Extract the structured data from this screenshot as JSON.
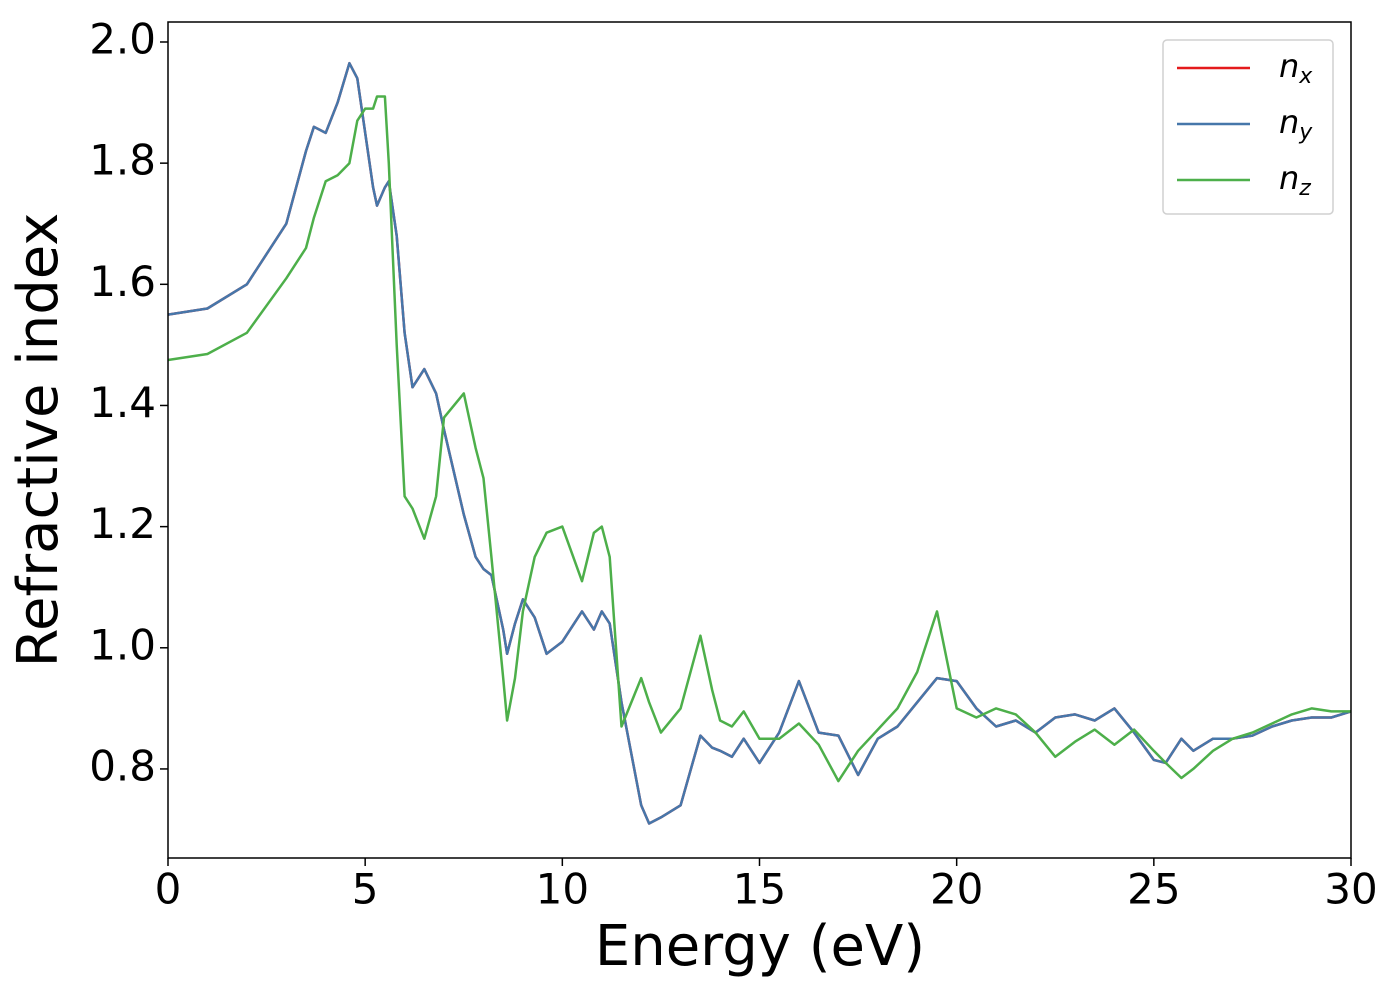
{
  "chart_data": {
    "type": "line",
    "xlabel": "Energy (eV)",
    "ylabel": "Refractive index",
    "x": [
      0,
      1,
      2,
      3,
      3.5,
      3.7,
      4,
      4.3,
      4.6,
      4.8,
      5,
      5.2,
      5.3,
      5.5,
      5.6,
      5.8,
      6,
      6.2,
      6.5,
      6.8,
      7,
      7.5,
      7.8,
      8,
      8.2,
      8.5,
      8.6,
      8.8,
      9,
      9.3,
      9.6,
      10,
      10.5,
      10.8,
      11,
      11.2,
      11.5,
      12,
      12.2,
      12.5,
      13,
      13.5,
      13.8,
      14,
      14.3,
      14.6,
      15,
      15.5,
      16,
      16.5,
      17,
      17.5,
      18,
      18.5,
      19,
      19.5,
      20,
      20.5,
      21,
      21.5,
      22,
      22.5,
      23,
      23.5,
      24,
      24.5,
      25,
      25.3,
      25.7,
      26,
      26.5,
      27,
      27.5,
      28,
      28.5,
      29,
      29.5,
      30
    ],
    "series": [
      {
        "name": "nx",
        "color": "#e41a1c",
        "values": [
          1.55,
          1.56,
          1.6,
          1.7,
          1.82,
          1.86,
          1.85,
          1.9,
          1.965,
          1.94,
          1.85,
          1.76,
          1.73,
          1.76,
          1.77,
          1.68,
          1.52,
          1.43,
          1.46,
          1.42,
          1.36,
          1.22,
          1.15,
          1.13,
          1.12,
          1.03,
          0.99,
          1.04,
          1.08,
          1.05,
          0.99,
          1.01,
          1.06,
          1.03,
          1.06,
          1.04,
          0.91,
          0.74,
          0.71,
          0.72,
          0.74,
          0.855,
          0.835,
          0.83,
          0.82,
          0.85,
          0.81,
          0.86,
          0.945,
          0.86,
          0.855,
          0.79,
          0.85,
          0.87,
          0.91,
          0.95,
          0.945,
          0.9,
          0.87,
          0.88,
          0.86,
          0.885,
          0.89,
          0.88,
          0.9,
          0.86,
          0.815,
          0.81,
          0.85,
          0.83,
          0.85,
          0.85,
          0.855,
          0.87,
          0.88,
          0.885,
          0.885,
          0.895
        ]
      },
      {
        "name": "ny",
        "color": "#4677aa",
        "values": [
          1.55,
          1.56,
          1.6,
          1.7,
          1.82,
          1.86,
          1.85,
          1.9,
          1.965,
          1.94,
          1.85,
          1.76,
          1.73,
          1.76,
          1.77,
          1.68,
          1.52,
          1.43,
          1.46,
          1.42,
          1.36,
          1.22,
          1.15,
          1.13,
          1.12,
          1.03,
          0.99,
          1.04,
          1.08,
          1.05,
          0.99,
          1.01,
          1.06,
          1.03,
          1.06,
          1.04,
          0.91,
          0.74,
          0.71,
          0.72,
          0.74,
          0.855,
          0.835,
          0.83,
          0.82,
          0.85,
          0.81,
          0.86,
          0.945,
          0.86,
          0.855,
          0.79,
          0.85,
          0.87,
          0.91,
          0.95,
          0.945,
          0.9,
          0.87,
          0.88,
          0.86,
          0.885,
          0.89,
          0.88,
          0.9,
          0.86,
          0.815,
          0.81,
          0.85,
          0.83,
          0.85,
          0.85,
          0.855,
          0.87,
          0.88,
          0.885,
          0.885,
          0.895
        ]
      },
      {
        "name": "nz",
        "color": "#4daf4a",
        "values": [
          1.475,
          1.485,
          1.52,
          1.61,
          1.66,
          1.71,
          1.77,
          1.78,
          1.8,
          1.87,
          1.89,
          1.89,
          1.91,
          1.91,
          1.8,
          1.5,
          1.25,
          1.23,
          1.18,
          1.25,
          1.38,
          1.42,
          1.33,
          1.28,
          1.15,
          0.95,
          0.88,
          0.95,
          1.06,
          1.15,
          1.19,
          1.2,
          1.11,
          1.19,
          1.2,
          1.15,
          0.87,
          0.95,
          0.91,
          0.86,
          0.9,
          1.02,
          0.93,
          0.88,
          0.87,
          0.895,
          0.85,
          0.85,
          0.875,
          0.84,
          0.78,
          0.83,
          0.865,
          0.9,
          0.96,
          1.06,
          0.9,
          0.885,
          0.9,
          0.89,
          0.86,
          0.82,
          0.845,
          0.865,
          0.84,
          0.865,
          0.83,
          0.81,
          0.785,
          0.8,
          0.83,
          0.85,
          0.86,
          0.875,
          0.89,
          0.9,
          0.895,
          0.895
        ]
      }
    ],
    "xlim": [
      0,
      30
    ],
    "xticks": [
      0,
      5,
      10,
      15,
      20,
      25,
      30
    ],
    "ylim": [
      0.653,
      2.033
    ],
    "yticks": [
      0.8,
      {
        "value": 1,
        "label": "1.0"
      },
      1.2,
      1.4,
      1.6,
      1.8,
      {
        "value": 2,
        "label": "2.0"
      }
    ],
    "grid": false,
    "legend": "upper right"
  }
}
